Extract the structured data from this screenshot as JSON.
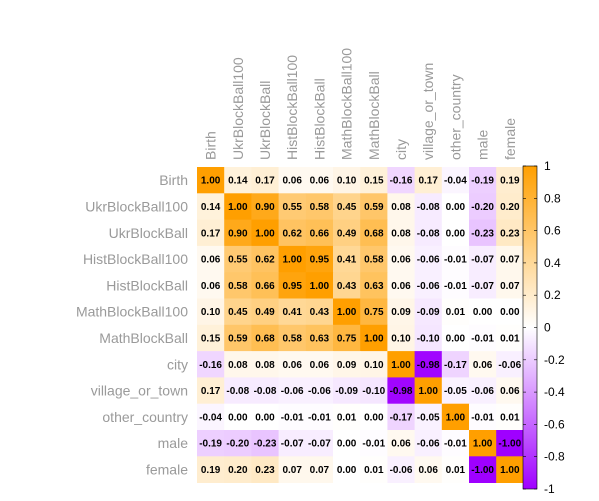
{
  "chart_data": {
    "type": "heatmap",
    "variables": [
      "Birth",
      "UkrBlockBall100",
      "UkrBlockBall",
      "HistBlockBall100",
      "HistBlockBall",
      "MathBlockBall100",
      "MathBlockBall",
      "city",
      "village_or_town",
      "other_country",
      "male",
      "female"
    ],
    "matrix": [
      [
        "1.00",
        "0.14",
        "0.17",
        "0.06",
        "0.06",
        "0.10",
        "0.15",
        "-0.16",
        "0.17",
        "-0.04",
        "-0.19",
        "0.19"
      ],
      [
        "0.14",
        "1.00",
        "0.90",
        "0.55",
        "0.58",
        "0.45",
        "0.59",
        "0.08",
        "-0.08",
        "0.00",
        "-0.20",
        "0.20"
      ],
      [
        "0.17",
        "0.90",
        "1.00",
        "0.62",
        "0.66",
        "0.49",
        "0.68",
        "0.08",
        "-0.08",
        "0.00",
        "-0.23",
        "0.23"
      ],
      [
        "0.06",
        "0.55",
        "0.62",
        "1.00",
        "0.95",
        "0.41",
        "0.58",
        "0.06",
        "-0.06",
        "-0.01",
        "-0.07",
        "0.07"
      ],
      [
        "0.06",
        "0.58",
        "0.66",
        "0.95",
        "1.00",
        "0.43",
        "0.63",
        "0.06",
        "-0.06",
        "-0.01",
        "-0.07",
        "0.07"
      ],
      [
        "0.10",
        "0.45",
        "0.49",
        "0.41",
        "0.43",
        "1.00",
        "0.75",
        "0.09",
        "-0.09",
        "0.01",
        "0.00",
        "0.00"
      ],
      [
        "0.15",
        "0.59",
        "0.68",
        "0.58",
        "0.63",
        "0.75",
        "1.00",
        "0.10",
        "-0.10",
        "0.00",
        "-0.01",
        "0.01"
      ],
      [
        "-0.16",
        "0.08",
        "0.08",
        "0.06",
        "0.06",
        "0.09",
        "0.10",
        "1.00",
        "-0.98",
        "-0.17",
        "0.06",
        "-0.06"
      ],
      [
        "0.17",
        "-0.08",
        "-0.08",
        "-0.06",
        "-0.06",
        "-0.09",
        "-0.10",
        "-0.98",
        "1.00",
        "-0.05",
        "-0.06",
        "0.06"
      ],
      [
        "-0.04",
        "0.00",
        "0.00",
        "-0.01",
        "-0.01",
        "0.01",
        "0.00",
        "-0.17",
        "-0.05",
        "1.00",
        "-0.01",
        "0.01"
      ],
      [
        "-0.19",
        "-0.20",
        "-0.23",
        "-0.07",
        "-0.07",
        "0.00",
        "-0.01",
        "0.06",
        "-0.06",
        "-0.01",
        "1.00",
        "-1.00"
      ],
      [
        "0.19",
        "0.20",
        "0.23",
        "0.07",
        "0.07",
        "0.00",
        "0.01",
        "-0.06",
        "0.06",
        "0.01",
        "-1.00",
        "1.00"
      ]
    ],
    "colorbar": {
      "ticks": [
        "1",
        "0.8",
        "0.6",
        "0.4",
        "0.2",
        "0",
        "-0.2",
        "-0.4",
        "-0.6",
        "-0.8",
        "-1"
      ],
      "range": [
        -1,
        1
      ]
    },
    "colors": {
      "positive": "#ff9f00",
      "zero": "#ffffff",
      "negative": "#9f00ff"
    }
  }
}
